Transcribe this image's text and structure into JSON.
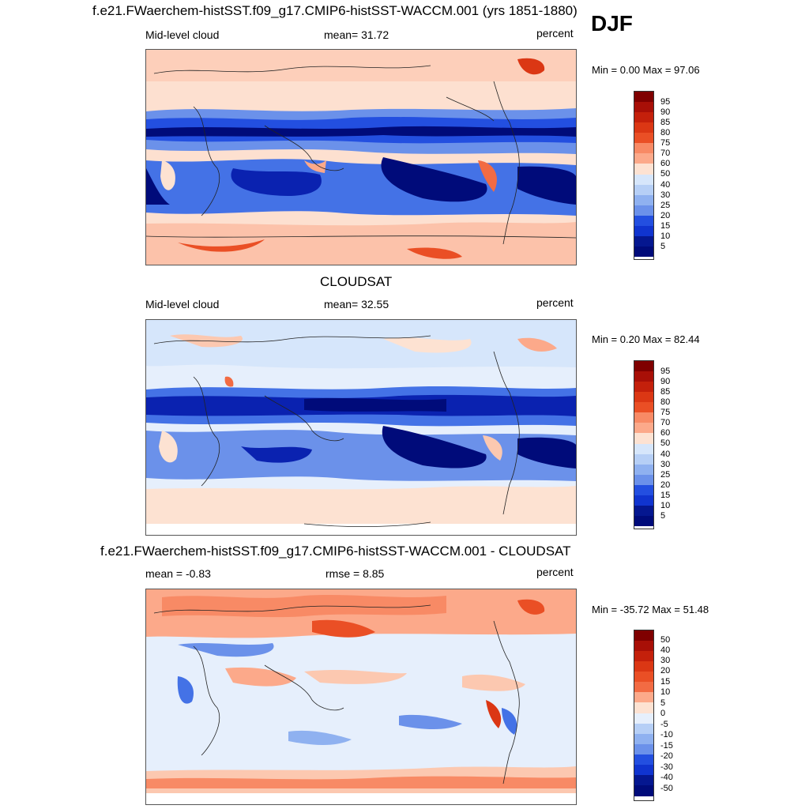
{
  "season": "DJF",
  "palette": {
    "positive": [
      "#fde2d2",
      "#fcc8b0",
      "#fca98a",
      "#f88a65",
      "#f26b43",
      "#ea4f25",
      "#db3714",
      "#c4200b",
      "#a80f07",
      "#7f0000"
    ],
    "negative": [
      "#d6e6fb",
      "#b6cff6",
      "#8fb1f0",
      "#6b91ea",
      "#4472e6",
      "#234fe0",
      "#1034cf",
      "#0a22b0",
      "#051790",
      "#000b7a"
    ]
  },
  "panels": [
    {
      "title": "f.e21.FWaerchem-histSST.f09_g17.CMIP6-histSST-WACCM.001 (yrs 1851-1880)",
      "left_label": "Mid-level cloud",
      "center_label": "mean=  31.72",
      "right_label": "percent",
      "minmax": "Min =   0.00 Max =  97.06",
      "colorbar_labels": [
        "95",
        "90",
        "85",
        "80",
        "75",
        "70",
        "60",
        "50",
        "40",
        "30",
        "25",
        "20",
        "15",
        "10",
        "5"
      ]
    },
    {
      "title": "CLOUDSAT",
      "left_label": "Mid-level cloud",
      "center_label": "mean=  32.55",
      "right_label": "percent",
      "minmax": "Min =   0.20 Max =  82.44",
      "colorbar_labels": [
        "95",
        "90",
        "85",
        "80",
        "75",
        "70",
        "60",
        "50",
        "40",
        "30",
        "25",
        "20",
        "15",
        "10",
        "5"
      ]
    },
    {
      "title": "f.e21.FWaerchem-histSST.f09_g17.CMIP6-histSST-WACCM.001 - CLOUDSAT",
      "left_label": "mean =  -0.83",
      "center_label": "rmse =   8.85",
      "right_label": "percent",
      "minmax": "Min = -35.72 Max =  51.48",
      "colorbar_labels": [
        "50",
        "40",
        "30",
        "20",
        "15",
        "10",
        "5",
        "0",
        "-5",
        "-10",
        "-15",
        "-20",
        "-30",
        "-40",
        "-50"
      ]
    }
  ]
}
